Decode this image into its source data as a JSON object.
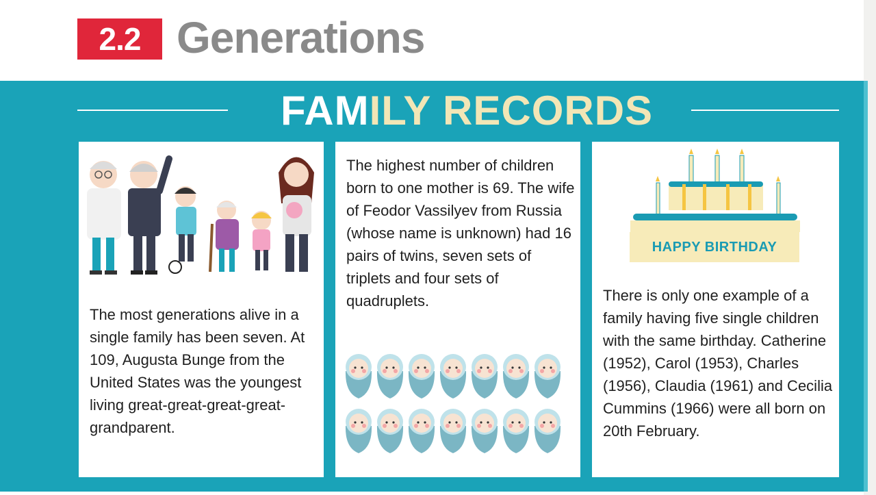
{
  "header": {
    "badge": "2.2",
    "title": "Generations"
  },
  "banner": {
    "title_part1": "FAM",
    "title_part2": "ILY RECORDS"
  },
  "cards": [
    {
      "text": "The most generations alive in a single family has been seven. At 109, Augusta Bunge from the United States was the youngest living great-great-great-great-grandparent."
    },
    {
      "text": "The highest number of children born to one mother is 69. The wife of Feodor Vassilyev from Russia (whose name is unknown) had 16 pairs of twins, seven sets of triplets and four sets of quadruplets."
    },
    {
      "cake_label": "HAPPY BIRTHDAY",
      "text": "There is only one example of a family having five single children with the same birthday. Catherine (1952), Carol (1953), Charles (1956), Claudia (1961) and Cecilia Cummins (1966) were all born on 20th February."
    }
  ],
  "colors": {
    "teal": "#1aa3b8",
    "red": "#e0263a",
    "cream": "#f2e6b6",
    "grey_title": "#8a8a8a"
  },
  "icons": [
    "family-illustration",
    "baby-icon",
    "birthday-cake-icon"
  ]
}
